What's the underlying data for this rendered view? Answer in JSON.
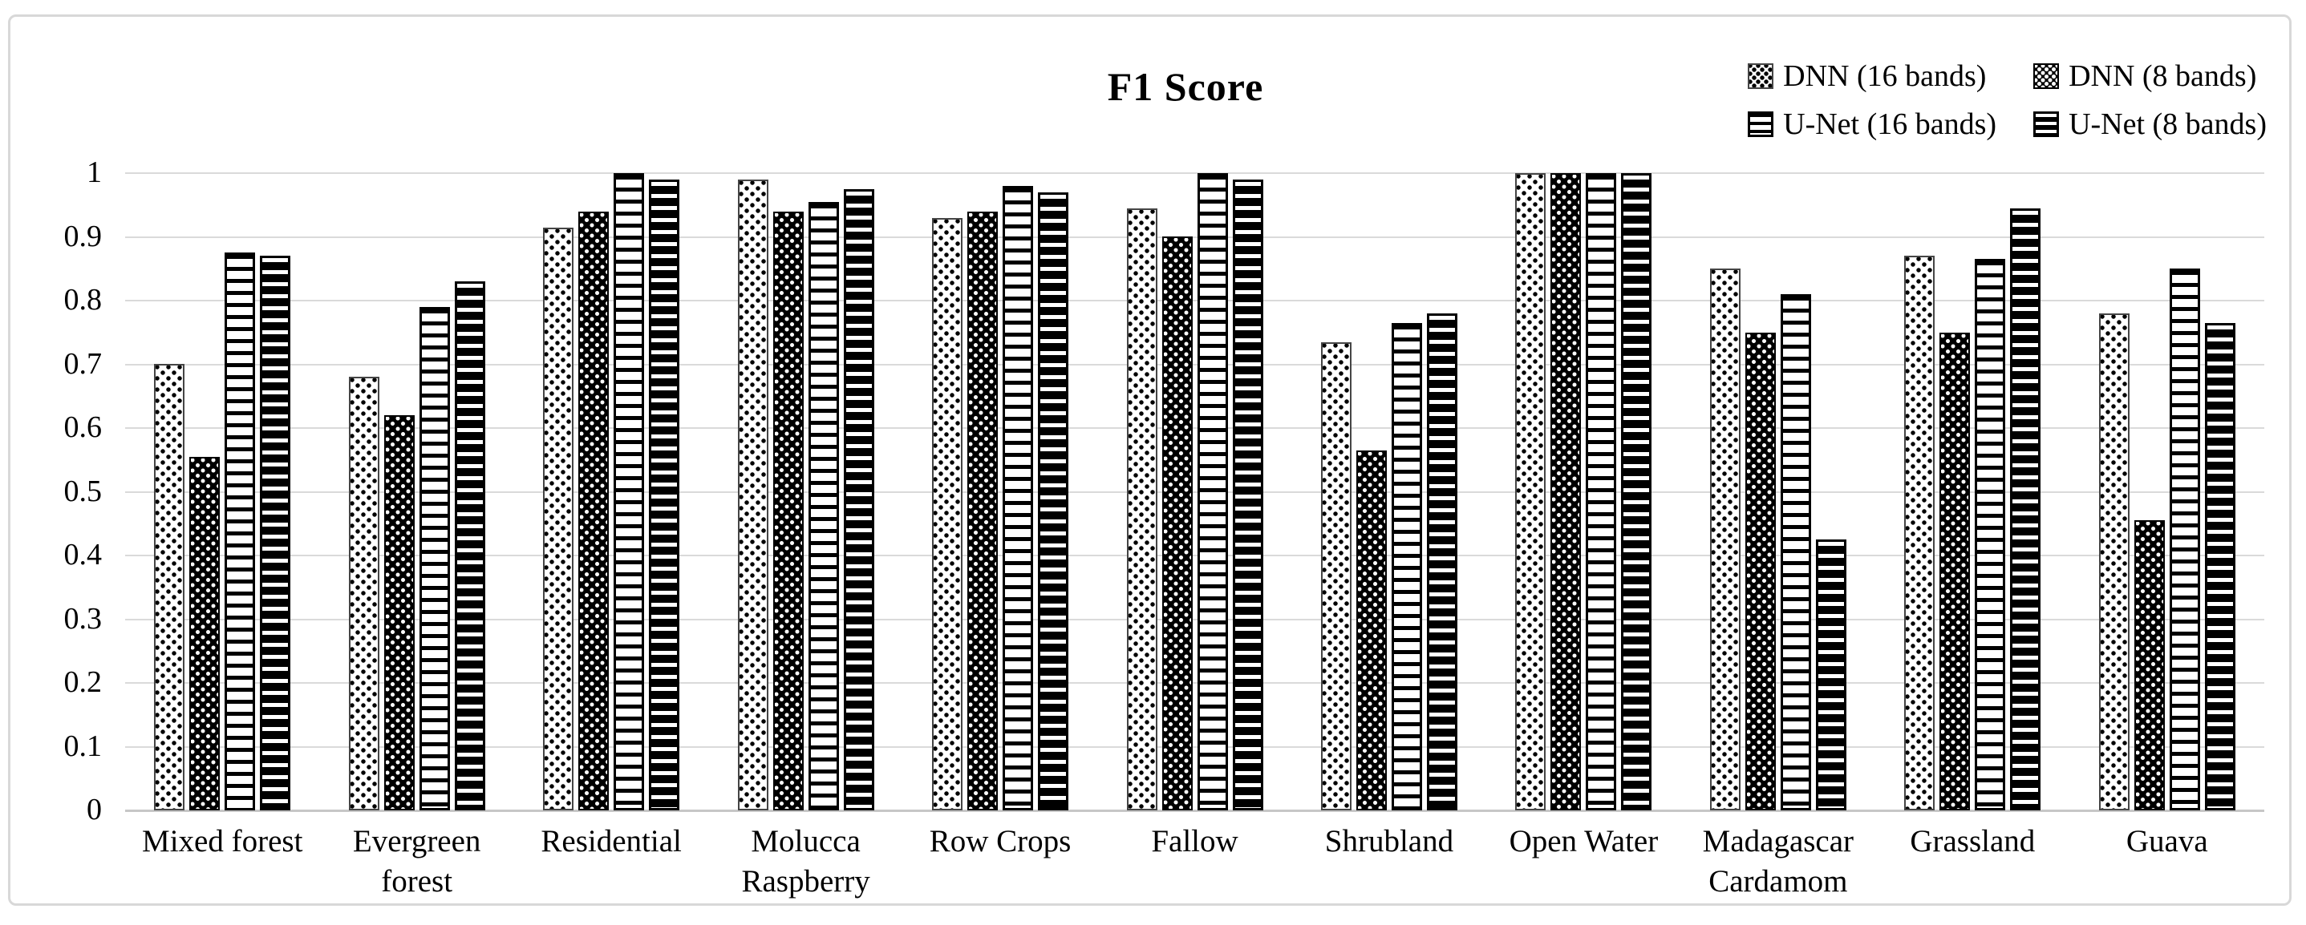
{
  "title": "F1 Score",
  "chart_data": {
    "type": "bar",
    "title": "F1 Score",
    "categories": [
      "Mixed forest",
      "Evergreen forest",
      "Residential",
      "Molucca Raspberry",
      "Row Crops",
      "Fallow",
      "Shrubland",
      "Open Water",
      "Madagascar Cardamom",
      "Grassland",
      "Guava"
    ],
    "tick_label_lines": [
      [
        "Mixed forest"
      ],
      [
        "Evergreen",
        "forest"
      ],
      [
        "Residential"
      ],
      [
        "Molucca",
        "Raspberry"
      ],
      [
        "Row Crops"
      ],
      [
        "Fallow"
      ],
      [
        "Shrubland"
      ],
      [
        "Open Water"
      ],
      [
        "Madagascar",
        "Cardamom"
      ],
      [
        "Grassland"
      ],
      [
        "Guava"
      ]
    ],
    "series": [
      {
        "name": "DNN (16 bands)",
        "pattern": "dots-light",
        "values": [
          0.7,
          0.68,
          0.915,
          0.99,
          0.93,
          0.945,
          0.735,
          1.0,
          0.85,
          0.87,
          0.78
        ]
      },
      {
        "name": "DNN (8 bands)",
        "pattern": "dots-dark",
        "values": [
          0.555,
          0.62,
          0.94,
          0.94,
          0.94,
          0.9,
          0.565,
          1.0,
          0.75,
          0.75,
          0.455
        ]
      },
      {
        "name": "U-Net (16 bands)",
        "pattern": "hlines-light",
        "values": [
          0.875,
          0.79,
          1.0,
          0.955,
          0.98,
          1.0,
          0.765,
          1.0,
          0.81,
          0.865,
          0.85
        ]
      },
      {
        "name": "U-Net (8 bands)",
        "pattern": "hlines-dark",
        "values": [
          0.87,
          0.83,
          0.99,
          0.975,
          0.97,
          0.99,
          0.78,
          1.0,
          0.425,
          0.945,
          0.765
        ]
      }
    ],
    "xlabel": "",
    "ylabel": "",
    "ylim": [
      0,
      1
    ],
    "ytick_labels": [
      "0",
      "0.1",
      "0.2",
      "0.3",
      "0.4",
      "0.5",
      "0.6",
      "0.7",
      "0.8",
      "0.9",
      "1"
    ],
    "grid": true,
    "legend_position": "top-right",
    "colors": {
      "bar_black": "#000000",
      "bar_white": "#ffffff",
      "gridline": "#dadada",
      "axis_line": "#c7c7c7",
      "text": "#000000",
      "figure_border": "#d8d8d8"
    }
  }
}
